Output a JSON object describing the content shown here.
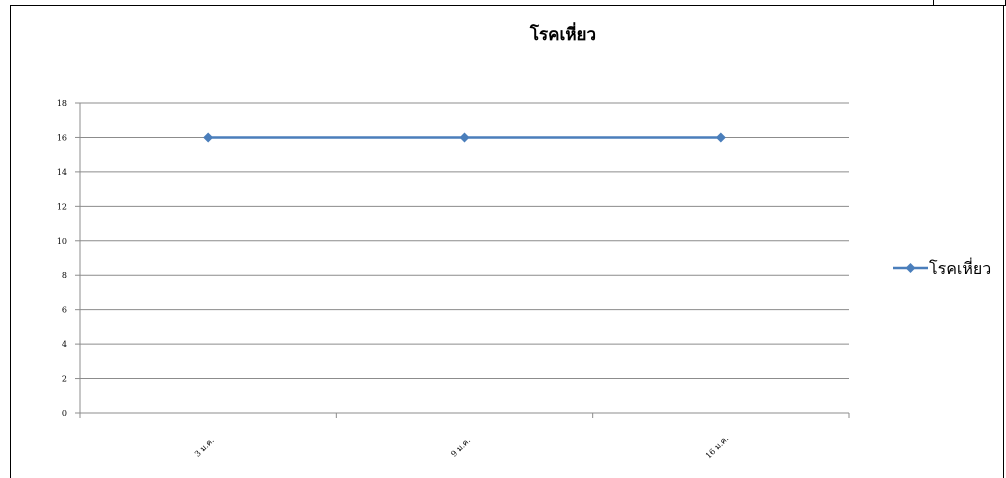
{
  "chart_data": {
    "type": "line",
    "title": "โรคเหี่ยว",
    "categories": [
      "3 ม.ค.",
      "9 ม.ค.",
      "16 ม.ค."
    ],
    "series": [
      {
        "name": "โรคเหี่ยว",
        "values": [
          16,
          16,
          16
        ],
        "color": "#4a7ebb"
      }
    ],
    "y_ticks": [
      "0",
      "2",
      "4",
      "6",
      "8",
      "10",
      "12",
      "14",
      "16",
      "18"
    ],
    "ylim": [
      0,
      18
    ],
    "grid": true,
    "legend_position": "right",
    "marker": "diamond"
  }
}
